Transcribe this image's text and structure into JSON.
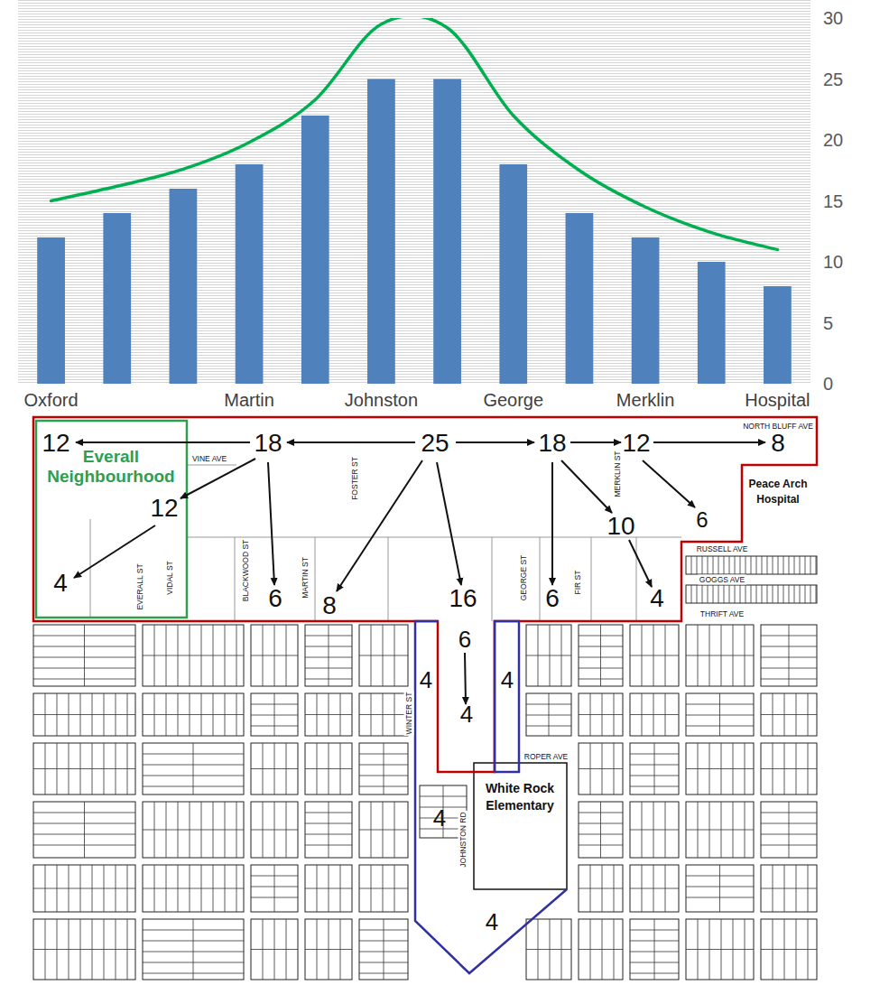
{
  "chart_data": {
    "type": "bar",
    "categories": [
      "Oxford",
      null,
      null,
      "Martin",
      null,
      "Johnston",
      null,
      "George",
      null,
      "Merklin",
      null,
      "Hospital"
    ],
    "series": [
      {
        "type": "bar",
        "color": "#4f81bd",
        "values": [
          12,
          14,
          16,
          18,
          22,
          25,
          25,
          18,
          14,
          12,
          10,
          8
        ]
      },
      {
        "type": "line",
        "color": "#00b050",
        "line_style": "smooth",
        "values": [
          15.0,
          16.2,
          17.6,
          19.8,
          23.3,
          29.5,
          29.2,
          22.0,
          17.5,
          14.5,
          12.4,
          11.0
        ]
      }
    ],
    "ylim": [
      0,
      30
    ],
    "yticks": [
      0,
      5,
      10,
      15,
      20,
      25,
      30
    ],
    "grid": false
  },
  "map": {
    "heights": [
      12,
      18,
      25,
      18,
      12,
      8,
      12,
      4,
      6,
      8,
      16,
      6,
      10,
      4,
      6,
      6,
      4,
      4,
      4,
      4,
      4
    ],
    "places": [
      "Everall Neighbourhood",
      "Peace Arch Hospital",
      "White Rock Elementary"
    ],
    "streets": [
      "NORTH BLUFF AVE",
      "VINE AVE",
      "FOSTER ST",
      "BLACKWOOD ST",
      "MARTIN ST",
      "VIDAL ST",
      "EVERALL ST",
      "GEORGE ST",
      "FIR ST",
      "MERKLIN ST",
      "RUSSELL AVE",
      "GOGGS AVE",
      "THRIFT AVE",
      "WINTER ST",
      "ROPER AVE",
      "JOHNSTON RD"
    ]
  }
}
